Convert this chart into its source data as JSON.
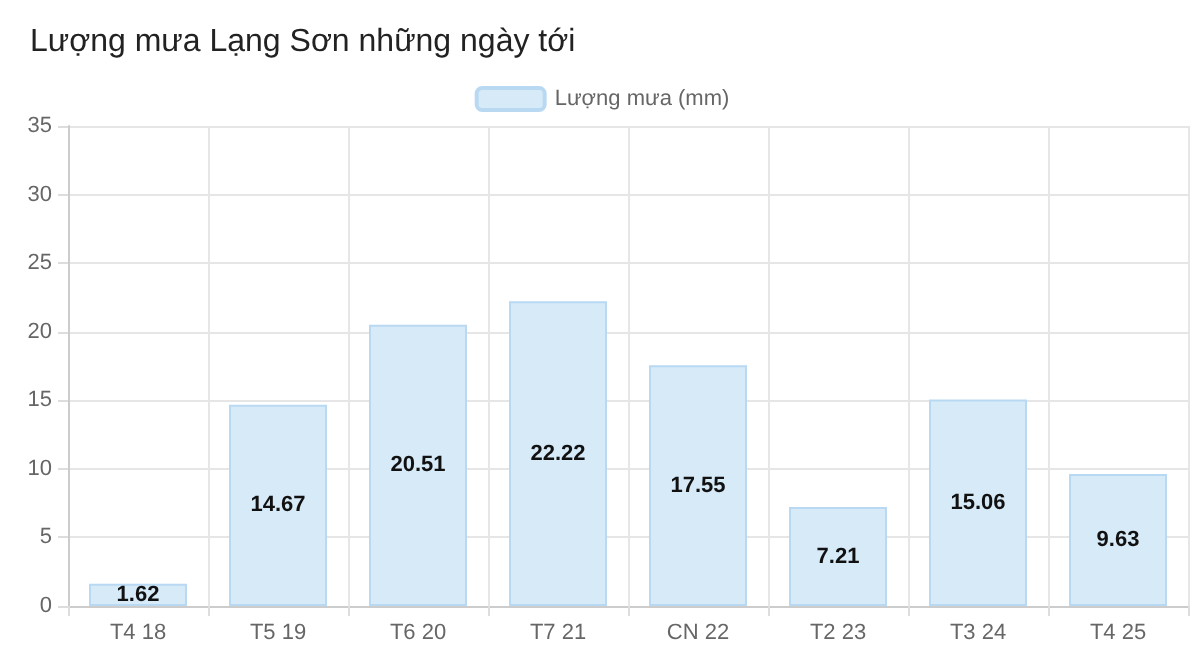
{
  "chart_data": {
    "type": "bar",
    "title": "Lượng mưa Lạng Sơn những ngày tới",
    "categories": [
      "T4 18",
      "T5 19",
      "T6 20",
      "T7 21",
      "CN 22",
      "T2 23",
      "T3 24",
      "T4 25"
    ],
    "series": [
      {
        "name": "Lượng mưa (mm)",
        "color": "#d6eaf8",
        "values": [
          1.62,
          14.67,
          20.51,
          22.22,
          17.55,
          7.21,
          15.06,
          9.63
        ]
      }
    ],
    "ylim": [
      0,
      35
    ],
    "yticks": [
      0,
      5,
      10,
      15,
      20,
      25,
      30,
      35
    ],
    "grid": true,
    "legend": "top",
    "data_labels": true
  }
}
